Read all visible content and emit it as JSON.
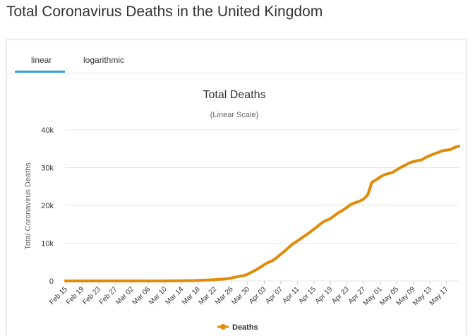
{
  "page": {
    "heading": "Total Coronavirus Deaths in the United Kingdom"
  },
  "tabs": [
    {
      "label": "linear",
      "active": true
    },
    {
      "label": "logarithmic",
      "active": false
    }
  ],
  "colors": {
    "series": "#e08b0a",
    "tab_active": "#3aa1d6",
    "grid": "#e6e6e6"
  },
  "chart_data": {
    "type": "line",
    "title": "Total Deaths",
    "subtitle": "(Linear Scale)",
    "xlabel": "",
    "ylabel": "Total Coronavirus Deaths",
    "ylim": [
      0,
      40000
    ],
    "yticks": [
      0,
      10000,
      20000,
      30000,
      40000
    ],
    "ytick_labels": [
      "0",
      "10k",
      "20k",
      "30k",
      "40k"
    ],
    "grid": true,
    "legend_position": "bottom-center",
    "xtick_labels": [
      "Feb 15",
      "Feb 19",
      "Feb 23",
      "Feb 27",
      "Mar 02",
      "Mar 06",
      "Mar 10",
      "Mar 14",
      "Mar 18",
      "Mar 22",
      "Mar 26",
      "Mar 30",
      "Apr 03",
      "Apr 07",
      "Apr 11",
      "Apr 15",
      "Apr 19",
      "Apr 23",
      "Apr 27",
      "May 01",
      "May 05",
      "May 09",
      "May 13",
      "May 17"
    ],
    "x": [
      "Feb 15",
      "Feb 16",
      "Feb 17",
      "Feb 18",
      "Feb 19",
      "Feb 20",
      "Feb 21",
      "Feb 22",
      "Feb 23",
      "Feb 24",
      "Feb 25",
      "Feb 26",
      "Feb 27",
      "Feb 28",
      "Feb 29",
      "Mar 01",
      "Mar 02",
      "Mar 03",
      "Mar 04",
      "Mar 05",
      "Mar 06",
      "Mar 07",
      "Mar 08",
      "Mar 09",
      "Mar 10",
      "Mar 11",
      "Mar 12",
      "Mar 13",
      "Mar 14",
      "Mar 15",
      "Mar 16",
      "Mar 17",
      "Mar 18",
      "Mar 19",
      "Mar 20",
      "Mar 21",
      "Mar 22",
      "Mar 23",
      "Mar 24",
      "Mar 25",
      "Mar 26",
      "Mar 27",
      "Mar 28",
      "Mar 29",
      "Mar 30",
      "Mar 31",
      "Apr 01",
      "Apr 02",
      "Apr 03",
      "Apr 04",
      "Apr 05",
      "Apr 06",
      "Apr 07",
      "Apr 08",
      "Apr 09",
      "Apr 10",
      "Apr 11",
      "Apr 12",
      "Apr 13",
      "Apr 14",
      "Apr 15",
      "Apr 16",
      "Apr 17",
      "Apr 18",
      "Apr 19",
      "Apr 20",
      "Apr 21",
      "Apr 22",
      "Apr 23",
      "Apr 24",
      "Apr 25",
      "Apr 26",
      "Apr 27",
      "Apr 28",
      "Apr 29",
      "Apr 30",
      "May 01",
      "May 02",
      "May 03",
      "May 04",
      "May 05",
      "May 06",
      "May 07",
      "May 08",
      "May 09",
      "May 10",
      "May 11",
      "May 12",
      "May 13",
      "May 14",
      "May 15",
      "May 16",
      "May 17",
      "May 18",
      "May 19",
      "May 20"
    ],
    "series": [
      {
        "name": "Deaths",
        "values": [
          0,
          0,
          0,
          0,
          0,
          0,
          0,
          0,
          0,
          0,
          0,
          0,
          0,
          0,
          0,
          0,
          0,
          0,
          0,
          1,
          2,
          2,
          3,
          6,
          8,
          10,
          21,
          35,
          56,
          60,
          72,
          104,
          144,
          178,
          233,
          281,
          335,
          422,
          465,
          578,
          759,
          1019,
          1228,
          1408,
          1789,
          2352,
          2921,
          3605,
          4313,
          4934,
          5373,
          6159,
          7097,
          7978,
          8958,
          9875,
          10612,
          11329,
          12107,
          12868,
          13729,
          14576,
          15464,
          16060,
          16509,
          17337,
          18100,
          18738,
          19506,
          20319,
          20732,
          21092,
          21678,
          22792,
          26097,
          26771,
          27510,
          28131,
          28446,
          28734,
          29427,
          30076,
          30615,
          31241,
          31587,
          31855,
          32065,
          32692,
          33186,
          33614,
          33998,
          34466,
          34636,
          34796,
          35341,
          35704
        ]
      }
    ]
  }
}
